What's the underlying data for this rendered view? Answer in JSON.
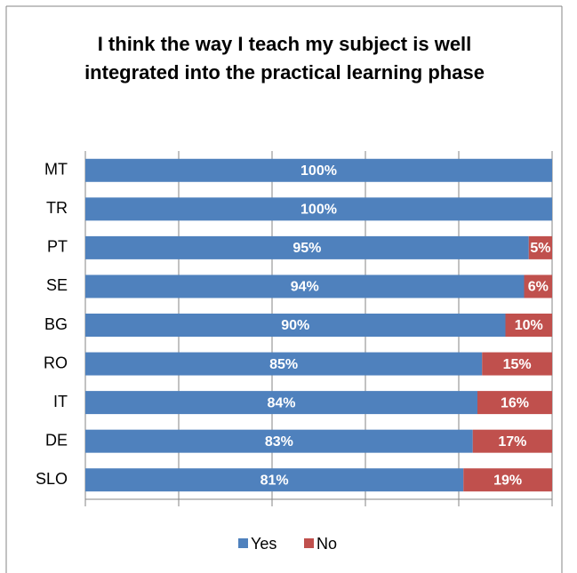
{
  "chart_data": {
    "type": "stacked-barh",
    "title": "I think the way I teach my subject is well integrated into the practical learning phase",
    "categories": [
      "MT",
      "TR",
      "PT",
      "SE",
      "BG",
      "RO",
      "IT",
      "DE",
      "SLO"
    ],
    "series": [
      {
        "name": "Yes",
        "color": "#4f81bd",
        "values": [
          100,
          100,
          95,
          94,
          90,
          85,
          84,
          83,
          81
        ],
        "value_labels": [
          "100%",
          "100%",
          "95%",
          "94%",
          "90%",
          "85%",
          "84%",
          "83%",
          "81%"
        ]
      },
      {
        "name": "No",
        "color": "#c0504d",
        "values": [
          0,
          0,
          5,
          6,
          10,
          15,
          16,
          17,
          19
        ],
        "value_labels": [
          null,
          null,
          "5%",
          "6%",
          "10%",
          "15%",
          "16%",
          "17%",
          "19%"
        ]
      }
    ],
    "xlim": [
      0,
      100
    ],
    "xticks": [
      0,
      20,
      40,
      60,
      80,
      100
    ],
    "grid": true,
    "legend": "bottom"
  }
}
